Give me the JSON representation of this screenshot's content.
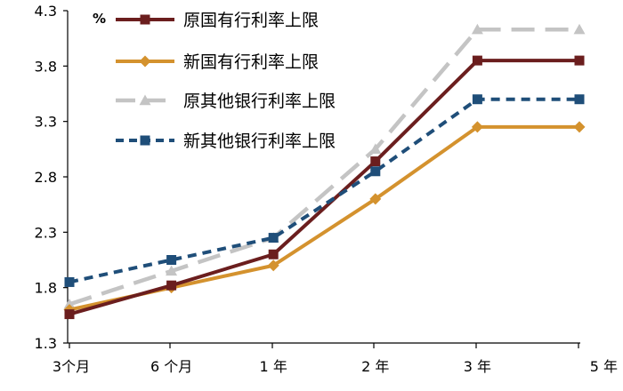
{
  "chart_data": {
    "type": "line",
    "title": "",
    "xlabel": "",
    "ylabel": "%",
    "categories": [
      "3个月",
      "6 个月",
      "1 年",
      "2 年",
      "3 年",
      "5 年"
    ],
    "ylim": [
      1.3,
      4.3
    ],
    "yticks": [
      "1.3",
      "1.8",
      "2.3",
      "2.8",
      "3.3",
      "3.8",
      "4.3"
    ],
    "grid": false,
    "legend_position": "top",
    "series": [
      {
        "name": "原国有行利率上限",
        "values": [
          1.56,
          1.82,
          2.1,
          2.94,
          3.85,
          3.85
        ],
        "color": "#6b1e1e",
        "dash": "solid",
        "marker": "square"
      },
      {
        "name": "新国有行利率上限",
        "values": [
          1.6,
          1.8,
          2.0,
          2.6,
          3.25,
          3.25
        ],
        "color": "#d4922e",
        "dash": "solid",
        "marker": "diamond"
      },
      {
        "name": "原其他银行利率上限",
        "values": [
          1.65,
          1.95,
          2.25,
          3.05,
          4.13,
          4.13
        ],
        "color": "#c4c4c4",
        "dash": "long-dash",
        "marker": "triangle"
      },
      {
        "name": "新其他银行利率上限",
        "values": [
          1.85,
          2.05,
          2.25,
          2.85,
          3.5,
          3.5
        ],
        "color": "#1f4e79",
        "dash": "short-dash",
        "marker": "square"
      }
    ]
  }
}
